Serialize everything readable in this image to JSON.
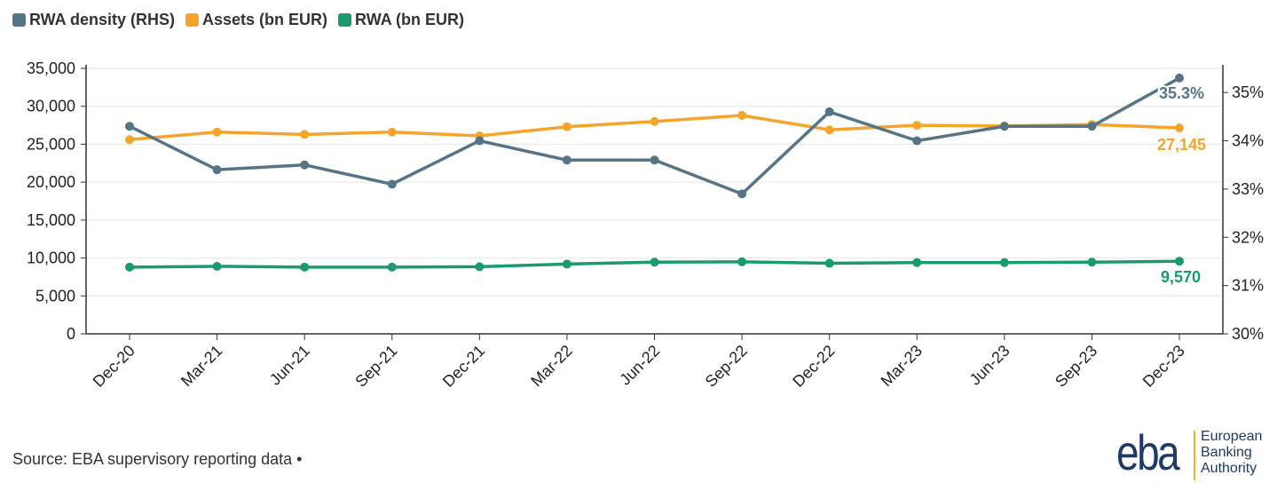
{
  "legend": {
    "rwa_density": "RWA density (RHS)",
    "assets": "Assets (bn EUR)",
    "rwa": "RWA (bn EUR)"
  },
  "colors": {
    "rwa_density": "#557587",
    "assets": "#f5a42c",
    "rwa": "#1b9a6f",
    "grid": "#e6e6e6",
    "axis": "#333333"
  },
  "source": "Source: EBA supervisory reporting data •",
  "logo": {
    "wordmark": "eba",
    "line1": "European",
    "line2": "Banking",
    "line3": "Authority"
  },
  "chart_data": {
    "type": "line",
    "categories": [
      "Dec-20",
      "Mar-21",
      "Jun-21",
      "Sep-21",
      "Dec-21",
      "Mar-22",
      "Jun-22",
      "Sep-22",
      "Dec-22",
      "Mar-23",
      "Jun-23",
      "Sep-23",
      "Dec-23"
    ],
    "left_axis": {
      "min": 0,
      "max": 35000,
      "ticks": [
        0,
        5000,
        10000,
        15000,
        20000,
        25000,
        30000,
        35000
      ],
      "tick_labels": [
        "0",
        "5,000",
        "10,000",
        "15,000",
        "20,000",
        "25,000",
        "30,000",
        "35,000"
      ]
    },
    "right_axis": {
      "min": 30,
      "max": 35.5,
      "ticks": [
        30,
        31,
        32,
        33,
        34,
        35
      ],
      "tick_labels": [
        "30%",
        "31%",
        "32%",
        "33%",
        "34%",
        "35%"
      ]
    },
    "series": [
      {
        "key": "rwa_density",
        "name": "RWA density (RHS)",
        "axis": "right",
        "values": [
          34.3,
          33.4,
          33.5,
          33.1,
          34.0,
          33.6,
          33.6,
          32.9,
          34.6,
          34.0,
          34.3,
          34.3,
          35.3
        ],
        "end_label": "35.3%"
      },
      {
        "key": "assets",
        "name": "Assets (bn EUR)",
        "axis": "left",
        "values": [
          25600,
          26600,
          26300,
          26600,
          26100,
          27300,
          28000,
          28800,
          26900,
          27500,
          27400,
          27600,
          27145
        ],
        "end_label": "27,145"
      },
      {
        "key": "rwa",
        "name": "RWA (bn EUR)",
        "axis": "left",
        "values": [
          8800,
          8900,
          8800,
          8800,
          8850,
          9200,
          9450,
          9500,
          9300,
          9400,
          9400,
          9450,
          9570
        ],
        "end_label": "9,570"
      }
    ]
  }
}
